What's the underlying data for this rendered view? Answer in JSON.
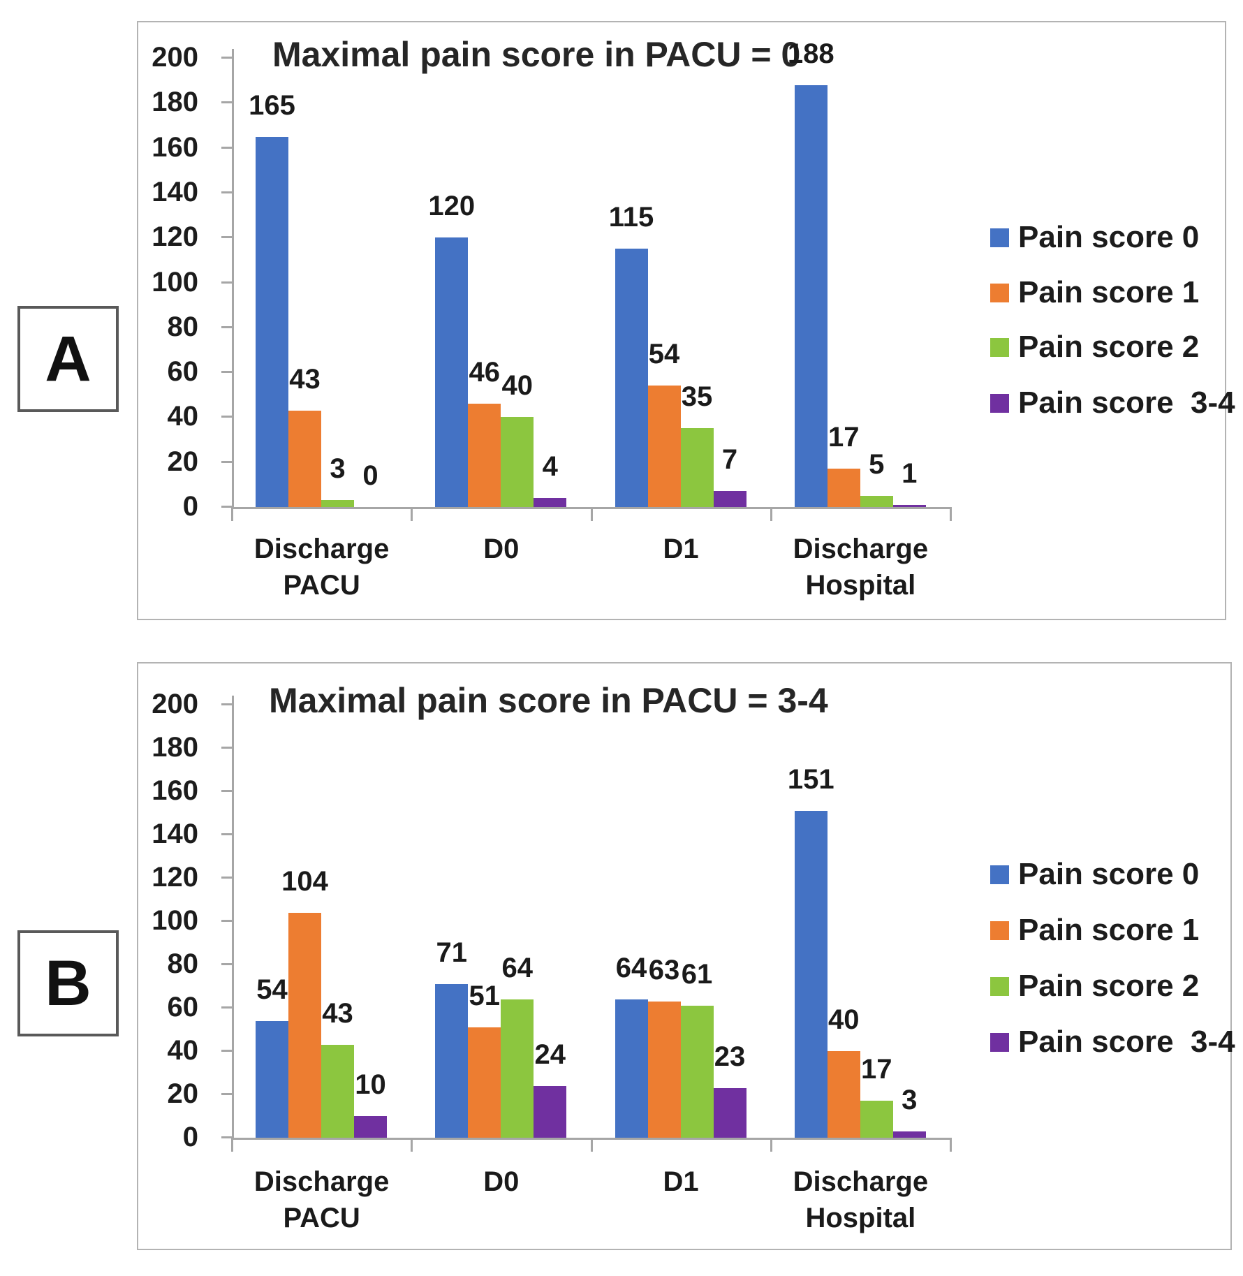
{
  "figure": {
    "panel_labels": [
      "A",
      "B"
    ]
  },
  "chart_data": [
    {
      "type": "bar",
      "title": "Maximal pain score in PACU = 0",
      "categories": [
        "Discharge PACU",
        "D0",
        "D1",
        "Discharge Hospital"
      ],
      "series": [
        {
          "name": "Pain score 0",
          "color": "#4472C4",
          "values": [
            165,
            120,
            115,
            188
          ]
        },
        {
          "name": "Pain score 1",
          "color": "#ED7D31",
          "values": [
            43,
            46,
            54,
            17
          ]
        },
        {
          "name": "Pain score 2",
          "color": "#8CC63F",
          "values": [
            3,
            40,
            35,
            5
          ]
        },
        {
          "name": "Pain score  3-4",
          "color": "#7030A0",
          "values": [
            0,
            4,
            7,
            1
          ]
        }
      ],
      "xlabel": "",
      "ylabel": "",
      "ylim": [
        0,
        200
      ],
      "ytick_step": 20,
      "grid": false,
      "legend_position": "right"
    },
    {
      "type": "bar",
      "title": "Maximal pain score in PACU = 3-4",
      "categories": [
        "Discharge PACU",
        "D0",
        "D1",
        "Discharge Hospital"
      ],
      "series": [
        {
          "name": "Pain score 0",
          "color": "#4472C4",
          "values": [
            54,
            71,
            64,
            151
          ]
        },
        {
          "name": "Pain score 1",
          "color": "#ED7D31",
          "values": [
            104,
            51,
            63,
            40
          ]
        },
        {
          "name": "Pain score 2",
          "color": "#8CC63F",
          "values": [
            43,
            64,
            61,
            17
          ]
        },
        {
          "name": "Pain score  3-4",
          "color": "#7030A0",
          "values": [
            10,
            24,
            23,
            3
          ]
        }
      ],
      "xlabel": "",
      "ylabel": "",
      "ylim": [
        0,
        200
      ],
      "ytick_step": 20,
      "grid": false,
      "legend_position": "right"
    }
  ]
}
